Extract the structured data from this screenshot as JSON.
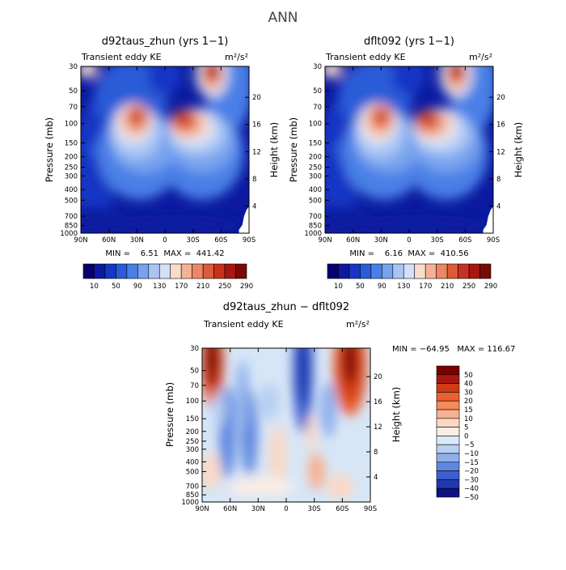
{
  "main_title": "ANN",
  "chart_data": [
    {
      "type": "heatmap",
      "title": "d92taus_zhun (yrs 1−1)",
      "left_label": "Transient eddy KE",
      "units": "m²/s²",
      "xlabel": "",
      "ylabel": "Pressure (mb)",
      "y2label": "Height (km)",
      "x_ticks": [
        "90N",
        "60N",
        "30N",
        "0",
        "30S",
        "60S",
        "90S"
      ],
      "y_ticks": [
        "30",
        "50",
        "70",
        "100",
        "150",
        "200",
        "250",
        "300",
        "400",
        "500",
        "700",
        "850",
        "1000"
      ],
      "y2_ticks": [
        "20",
        "16",
        "12",
        "8",
        "4"
      ],
      "min": "6.51",
      "max": "441.42",
      "stats_text": "MIN =    6.51  MAX =  441.42",
      "colorbar": [
        "10",
        "50",
        "90",
        "130",
        "170",
        "210",
        "250",
        "290"
      ],
      "ylim_mb": [
        1000,
        30
      ],
      "xlim_lat": [
        90,
        -90
      ]
    },
    {
      "type": "heatmap",
      "title": "dflt092 (yrs 1−1)",
      "left_label": "Transient eddy KE",
      "units": "m²/s²",
      "xlabel": "",
      "ylabel": "Pressure (mb)",
      "y2label": "Height (km)",
      "x_ticks": [
        "90N",
        "60N",
        "30N",
        "0",
        "30S",
        "60S",
        "90S"
      ],
      "y_ticks": [
        "30",
        "50",
        "70",
        "100",
        "150",
        "200",
        "250",
        "300",
        "400",
        "500",
        "700",
        "850",
        "1000"
      ],
      "y2_ticks": [
        "20",
        "16",
        "12",
        "8",
        "4"
      ],
      "min": "6.16",
      "max": "410.56",
      "stats_text": "MIN =    6.16  MAX =  410.56",
      "colorbar": [
        "10",
        "50",
        "90",
        "130",
        "170",
        "210",
        "250",
        "290"
      ],
      "ylim_mb": [
        1000,
        30
      ],
      "xlim_lat": [
        90,
        -90
      ]
    },
    {
      "type": "heatmap",
      "title": "d92taus_zhun − dflt092",
      "left_label": "Transient eddy KE",
      "units": "m²/s²",
      "xlabel": "",
      "ylabel": "Pressure (mb)",
      "y2label": "Height (km)",
      "x_ticks": [
        "90N",
        "60N",
        "30N",
        "0",
        "30S",
        "60S",
        "90S"
      ],
      "y_ticks": [
        "30",
        "50",
        "70",
        "100",
        "150",
        "200",
        "250",
        "300",
        "400",
        "500",
        "700",
        "850",
        "1000"
      ],
      "y2_ticks": [
        "20",
        "16",
        "12",
        "8",
        "4"
      ],
      "min": "−64.95",
      "max": "116.67",
      "stats_text": "MIN = −64.95   MAX = 116.67",
      "colorbar": [
        "50",
        "40",
        "30",
        "20",
        "15",
        "10",
        "5",
        "0",
        "−5",
        "−10",
        "−15",
        "−20",
        "−30",
        "−40",
        "−50"
      ],
      "ylim_mb": [
        1000,
        30
      ],
      "xlim_lat": [
        90,
        -90
      ]
    }
  ],
  "palettes": {
    "field": [
      "#08006e",
      "#0b1aa0",
      "#1636c4",
      "#2a5bd8",
      "#4a7fe6",
      "#77a2ee",
      "#a8c4f4",
      "#d3e0f8",
      "#f8dccb",
      "#f4b295",
      "#ec8663",
      "#dd5a3a",
      "#c73220",
      "#a81610",
      "#7a0a06"
    ],
    "diff": [
      "#7a0000",
      "#a81810",
      "#d23a18",
      "#ec6030",
      "#f58a5a",
      "#f8b090",
      "#fbd8c4",
      "#fbeee5",
      "#dbe8f8",
      "#b8cff2",
      "#8fb0ec",
      "#5f88e0",
      "#3a5fd0",
      "#1f38b0",
      "#0c1380"
    ]
  }
}
